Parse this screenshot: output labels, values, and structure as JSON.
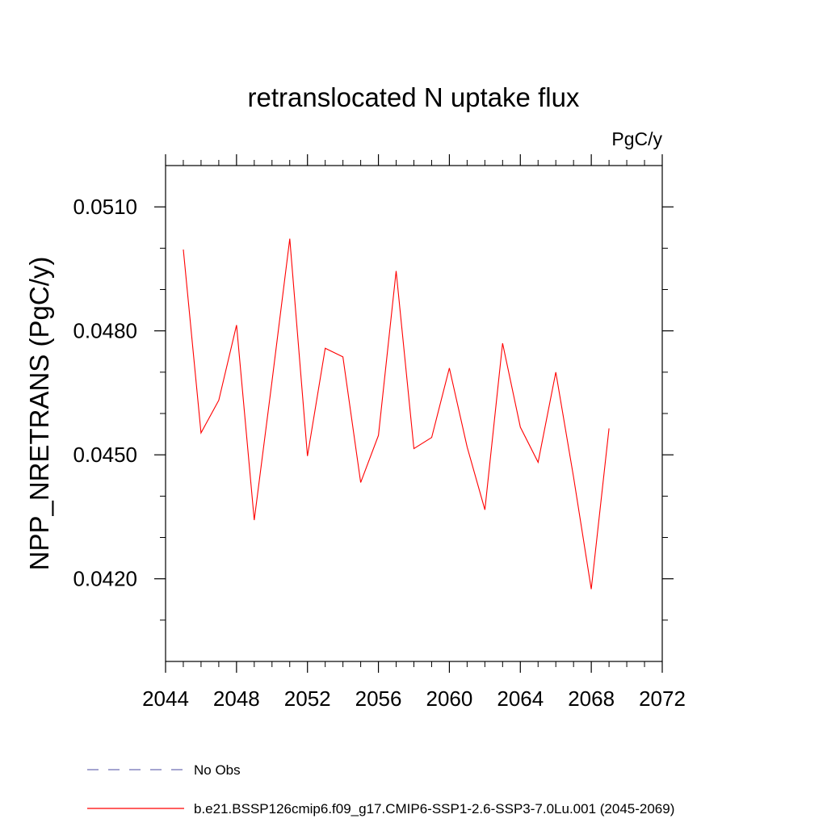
{
  "chart_data": {
    "type": "line",
    "title": "retranslocated N uptake flux",
    "units_label": "PgC/y",
    "xlabel": "",
    "ylabel": "NPP_NRETRANS  (PgC/y)",
    "xlim": [
      2044,
      2072
    ],
    "ylim": [
      0.04,
      0.052
    ],
    "x_ticks": [
      2044,
      2048,
      2052,
      2056,
      2060,
      2064,
      2068,
      2072
    ],
    "x_tick_labels": [
      "2044",
      "2048",
      "2052",
      "2056",
      "2060",
      "2064",
      "2068",
      "2072"
    ],
    "y_ticks": [
      0.042,
      0.045,
      0.048,
      0.051
    ],
    "y_tick_labels": [
      "0.0420",
      "0.0450",
      "0.0480",
      "0.0510"
    ],
    "grid": false,
    "series": [
      {
        "name": "b.e21.BSSP126cmip6.f09_g17.CMIP6-SSP1-2.6-SSP3-7.0Lu.001 (2045-2069)",
        "color": "#ff0000",
        "x": [
          2045,
          2046,
          2047,
          2048,
          2049,
          2050,
          2051,
          2052,
          2053,
          2054,
          2055,
          2056,
          2057,
          2058,
          2059,
          2060,
          2061,
          2062,
          2063,
          2064,
          2065,
          2066,
          2067,
          2068,
          2069
        ],
        "y": [
          0.04997,
          0.04553,
          0.04632,
          0.04814,
          0.04342,
          0.04678,
          0.05023,
          0.04497,
          0.04758,
          0.04737,
          0.04433,
          0.04547,
          0.04945,
          0.04515,
          0.04542,
          0.0471,
          0.04519,
          0.04367,
          0.0477,
          0.04567,
          0.04482,
          0.047,
          0.04446,
          0.04175,
          0.04564
        ]
      }
    ],
    "legend": {
      "position": "bottom",
      "entries": [
        {
          "label": "No Obs",
          "color": "#6f6fb4",
          "style": "dashed"
        },
        {
          "label": "b.e21.BSSP126cmip6.f09_g17.CMIP6-SSP1-2.6-SSP3-7.0Lu.001 (2045-2069)",
          "color": "#ff0000",
          "style": "solid"
        }
      ]
    }
  }
}
